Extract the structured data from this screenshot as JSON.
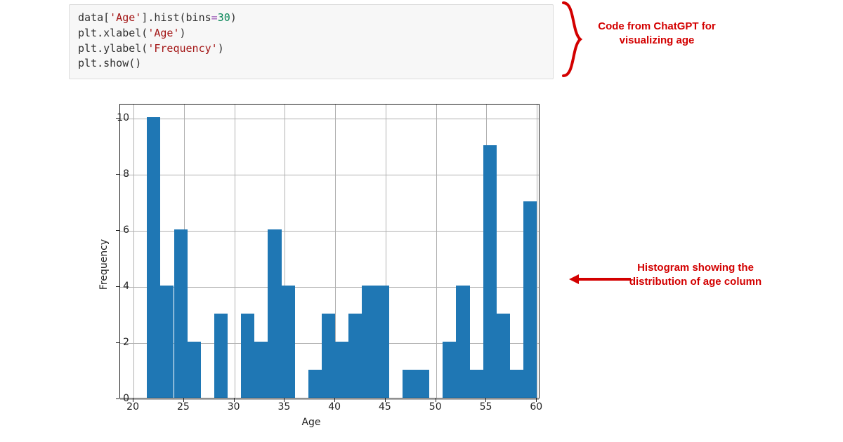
{
  "code": {
    "line1_a": "data[",
    "line1_str": "'Age'",
    "line1_b": "].hist(bins",
    "line1_op": "=",
    "line1_num": "30",
    "line1_c": ")",
    "line2_a": "plt.xlabel(",
    "line2_str": "'Age'",
    "line2_b": ")",
    "line3_a": "plt.ylabel(",
    "line3_str": "'Frequency'",
    "line3_b": ")",
    "line4": "plt.show()"
  },
  "annotations": {
    "code_label": "Code from ChatGPT for visualizing age",
    "hist_label": "Histogram showing the distribution of age column",
    "color": "#d30000"
  },
  "chart": {
    "type": "histogram",
    "xlabel": "Age",
    "ylabel": "Frequency",
    "xlim": [
      18.67,
      60.33
    ],
    "ylim": [
      0,
      10.5
    ],
    "xticks": [
      20,
      25,
      30,
      35,
      40,
      45,
      50,
      55,
      60
    ],
    "yticks": [
      0,
      2,
      4,
      6,
      8,
      10
    ],
    "bar_color": "#1f77b4",
    "background_color": "#ffffff",
    "grid_color": "#b0b0b0",
    "border_color": "#222222",
    "tick_fontsize": 14,
    "label_fontsize": 14,
    "bin_edges_start": 20,
    "bin_width": 1.3333,
    "bin_counts": [
      0,
      10,
      4,
      6,
      2,
      0,
      3,
      0,
      3,
      2,
      6,
      4,
      0,
      1,
      3,
      2,
      3,
      4,
      4,
      0,
      1,
      1,
      0,
      2,
      4,
      1,
      9,
      3,
      1,
      7
    ]
  }
}
